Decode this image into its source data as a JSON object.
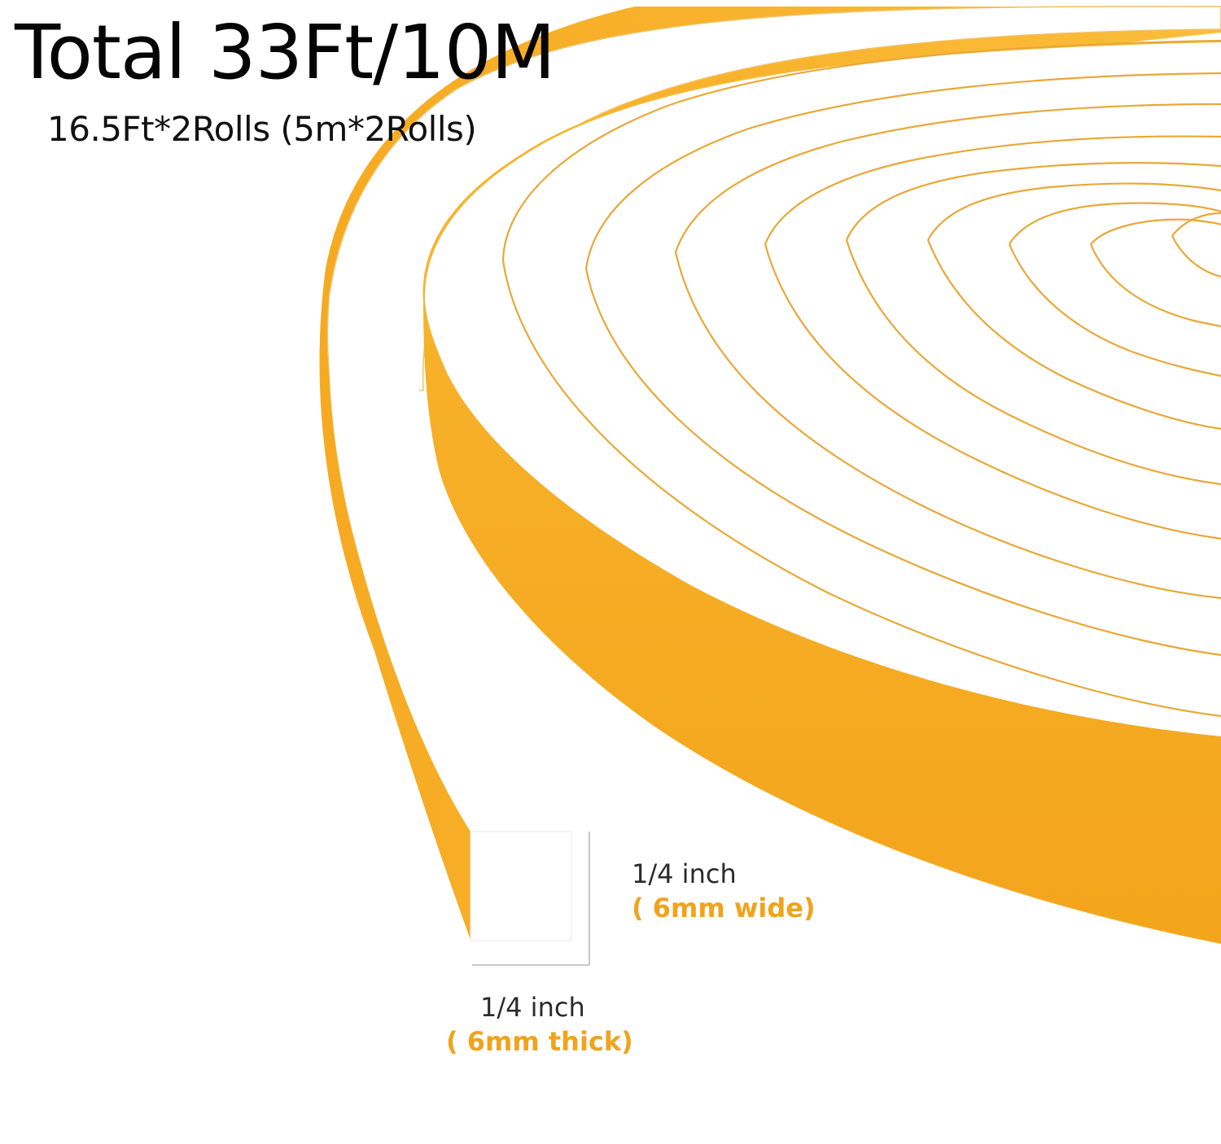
{
  "headline": {
    "total": "Total 33Ft/10M",
    "rolls": "16.5Ft*2Rolls (5m*2Rolls)"
  },
  "dimensions": {
    "wide": {
      "measure": "1/4 inch",
      "metric": "( 6mm wide)"
    },
    "thick": {
      "measure": "1/4 inch",
      "metric": "( 6mm  thick)"
    }
  },
  "colors": {
    "foam_face": "#ffffff",
    "adhesive_edge": "#f8b22a",
    "coil_line": "#e8a838",
    "text_dark": "#050505",
    "metric_text": "#f0a31d"
  },
  "scene": {
    "product": "foam weatherstrip tape roll",
    "roll_count": 2,
    "visible_coils": 10
  }
}
